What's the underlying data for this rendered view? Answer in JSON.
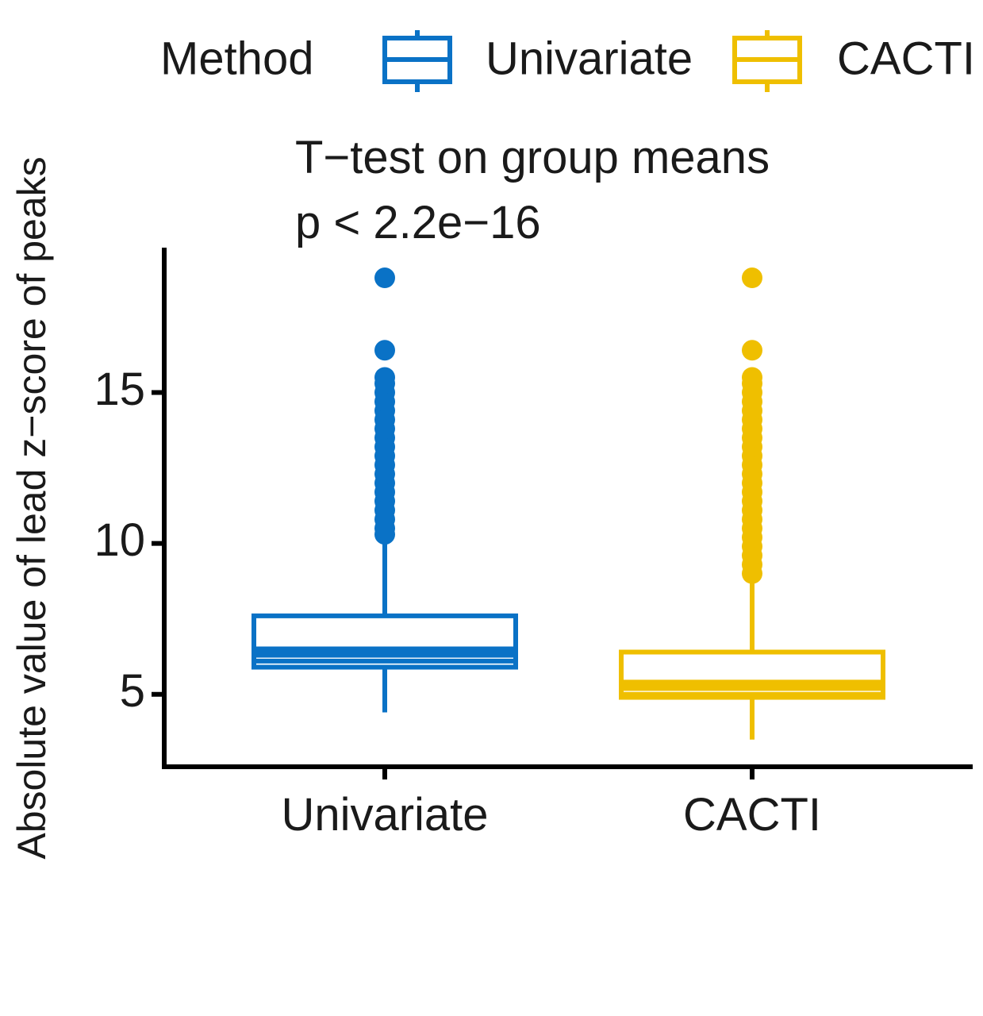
{
  "chart_data": {
    "type": "boxplot",
    "title": "",
    "xlabel": "",
    "ylabel": "Absolute value of lead z−score of peaks",
    "ylim": [
      2.6,
      19.8
    ],
    "yticks": [
      5,
      10,
      15
    ],
    "grid": false,
    "legend": {
      "title": "Method",
      "position": "top",
      "entries": [
        {
          "label": "Univariate",
          "color": "#0a72c6"
        },
        {
          "label": "CACTI",
          "color": "#efbf00"
        }
      ]
    },
    "annotation": {
      "line1": "T−test on group means",
      "line2": "p < 2.2e−16"
    },
    "categories": [
      "Univariate",
      "CACTI"
    ],
    "series": [
      {
        "name": "Univariate",
        "color": "#0a72c6",
        "whisker_low": 4.4,
        "q1": 5.9,
        "median": 6.4,
        "mean": 6.1,
        "q3": 7.6,
        "whisker_high": 10.2,
        "outliers": [
          10.3,
          10.5,
          10.8,
          11.1,
          11.4,
          11.7,
          12.0,
          12.3,
          12.6,
          12.9,
          13.2,
          13.5,
          13.8,
          14.1,
          14.4,
          14.7,
          15.0,
          15.3,
          15.5,
          16.4,
          18.8
        ]
      },
      {
        "name": "CACTI",
        "color": "#efbf00",
        "whisker_low": 3.5,
        "q1": 4.9,
        "median": 5.3,
        "mean": 5.0,
        "q3": 6.4,
        "whisker_high": 8.8,
        "outliers": [
          9.0,
          9.3,
          9.6,
          9.9,
          10.2,
          10.5,
          10.8,
          11.1,
          11.4,
          11.7,
          12.0,
          12.3,
          12.6,
          12.9,
          13.2,
          13.5,
          13.8,
          14.1,
          14.4,
          14.7,
          15.0,
          15.3,
          15.5,
          16.4,
          18.8
        ]
      }
    ]
  }
}
